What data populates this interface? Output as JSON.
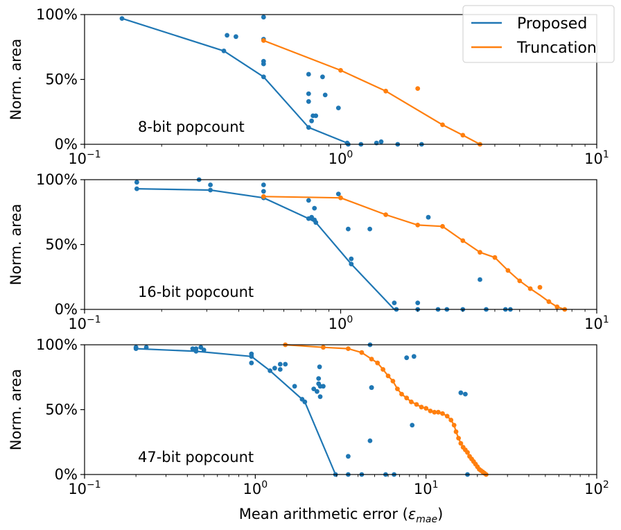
{
  "chart_data": [
    {
      "type": "scatter",
      "annotation": "8-bit popcount",
      "ylabel": "Norm. area",
      "xscale": "log",
      "xlim": [
        0.1,
        10
      ],
      "ylim": [
        0,
        100
      ],
      "x_tick_labels": [
        {
          "base": "10",
          "exp": "−1"
        },
        {
          "base": "10",
          "exp": "0"
        },
        {
          "base": "10",
          "exp": "1"
        }
      ],
      "y_tick_labels": [
        "0%",
        "50%",
        "100%"
      ],
      "series": [
        {
          "name": "Proposed",
          "color": "#1f77b4",
          "line": [
            [
              0.14,
              97
            ],
            [
              0.35,
              72
            ],
            [
              0.5,
              52
            ],
            [
              0.75,
              13
            ],
            [
              1.06,
              1
            ]
          ],
          "points": [
            [
              0.14,
              97
            ],
            [
              0.36,
              84
            ],
            [
              0.39,
              83
            ],
            [
              0.35,
              72
            ],
            [
              0.5,
              98
            ],
            [
              0.5,
              81
            ],
            [
              0.5,
              64
            ],
            [
              0.5,
              62
            ],
            [
              0.5,
              52
            ],
            [
              0.75,
              54
            ],
            [
              0.85,
              52
            ],
            [
              0.75,
              39
            ],
            [
              0.87,
              38
            ],
            [
              0.75,
              33
            ],
            [
              0.78,
              22
            ],
            [
              0.8,
              22
            ],
            [
              0.77,
              18
            ],
            [
              0.98,
              28
            ],
            [
              0.75,
              13
            ],
            [
              1.06,
              1
            ],
            [
              1.07,
              0
            ],
            [
              1.2,
              0
            ],
            [
              1.38,
              1
            ],
            [
              1.44,
              2
            ],
            [
              1.67,
              0
            ],
            [
              2.07,
              0
            ]
          ]
        },
        {
          "name": "Truncation",
          "color": "#ff7f0e",
          "line": [
            [
              0.5,
              80
            ],
            [
              1.0,
              57
            ],
            [
              1.5,
              41
            ],
            [
              2.5,
              15
            ],
            [
              3.0,
              7
            ],
            [
              3.5,
              0
            ]
          ],
          "points": [
            [
              0.5,
              80
            ],
            [
              1.0,
              57
            ],
            [
              1.5,
              41
            ],
            [
              2.0,
              43
            ],
            [
              2.5,
              15
            ],
            [
              3.0,
              7
            ],
            [
              3.5,
              0
            ]
          ]
        }
      ]
    },
    {
      "type": "scatter",
      "annotation": "16-bit popcount",
      "ylabel": "Norm. area",
      "xscale": "log",
      "xlim": [
        0.1,
        10
      ],
      "ylim": [
        0,
        100
      ],
      "x_tick_labels": [
        {
          "base": "10",
          "exp": "−1"
        },
        {
          "base": "10",
          "exp": "0"
        },
        {
          "base": "10",
          "exp": "1"
        }
      ],
      "y_tick_labels": [
        "0%",
        "50%",
        "100%"
      ],
      "series": [
        {
          "name": "Proposed",
          "color": "#1f77b4",
          "line": [
            [
              0.16,
              93
            ],
            [
              0.31,
              92
            ],
            [
              0.5,
              86
            ],
            [
              0.75,
              70
            ],
            [
              0.8,
              67
            ],
            [
              1.1,
              35
            ],
            [
              1.62,
              0
            ]
          ],
          "points": [
            [
              0.16,
              98
            ],
            [
              0.16,
              93
            ],
            [
              0.28,
              100
            ],
            [
              0.31,
              96
            ],
            [
              0.31,
              92
            ],
            [
              0.5,
              96
            ],
            [
              0.5,
              91
            ],
            [
              0.5,
              86
            ],
            [
              0.75,
              84
            ],
            [
              0.79,
              78
            ],
            [
              0.75,
              70
            ],
            [
              0.77,
              71
            ],
            [
              0.79,
              69
            ],
            [
              0.8,
              67
            ],
            [
              0.98,
              89
            ],
            [
              1.07,
              62
            ],
            [
              1.3,
              62
            ],
            [
              1.1,
              39
            ],
            [
              1.1,
              35
            ],
            [
              1.62,
              5
            ],
            [
              1.65,
              0
            ],
            [
              2.0,
              5
            ],
            [
              2.0,
              0
            ],
            [
              2.2,
              71
            ],
            [
              2.4,
              0
            ],
            [
              2.6,
              0
            ],
            [
              3.0,
              0
            ],
            [
              3.5,
              23
            ],
            [
              3.7,
              0
            ],
            [
              4.4,
              0
            ],
            [
              4.6,
              0
            ]
          ]
        },
        {
          "name": "Truncation",
          "color": "#ff7f0e",
          "line": [
            [
              0.5,
              87
            ],
            [
              1.0,
              86
            ],
            [
              1.5,
              73
            ],
            [
              2.0,
              65
            ],
            [
              2.5,
              64
            ],
            [
              3.0,
              53
            ],
            [
              3.5,
              44
            ],
            [
              4.0,
              40
            ],
            [
              4.5,
              30
            ],
            [
              5.0,
              22
            ],
            [
              5.5,
              16
            ],
            [
              6.0,
              11
            ],
            [
              6.5,
              6
            ],
            [
              7.0,
              2
            ],
            [
              7.5,
              0
            ]
          ],
          "points": [
            [
              0.5,
              87
            ],
            [
              1.0,
              86
            ],
            [
              1.5,
              73
            ],
            [
              2.0,
              65
            ],
            [
              2.5,
              64
            ],
            [
              3.0,
              53
            ],
            [
              3.5,
              44
            ],
            [
              4.0,
              40
            ],
            [
              4.5,
              30
            ],
            [
              5.0,
              22
            ],
            [
              5.5,
              16
            ],
            [
              6.0,
              17
            ],
            [
              6.5,
              6
            ],
            [
              7.0,
              2
            ],
            [
              7.5,
              0
            ]
          ]
        }
      ]
    },
    {
      "type": "scatter",
      "annotation": "47-bit popcount",
      "ylabel": "Norm. area",
      "xlabel_main": "Mean arithmetic error (",
      "xlabel_var": "ε",
      "xlabel_sub": "mae",
      "xlabel_end": ")",
      "xscale": "log",
      "xlim": [
        0.1,
        100
      ],
      "ylim": [
        0,
        100
      ],
      "x_tick_labels": [
        {
          "base": "10",
          "exp": "−1"
        },
        {
          "base": "10",
          "exp": "0"
        },
        {
          "base": "10",
          "exp": "1"
        },
        {
          "base": "10",
          "exp": "2"
        }
      ],
      "y_tick_labels": [
        "0%",
        "50%",
        "100%"
      ],
      "series": [
        {
          "name": "Proposed",
          "color": "#1f77b4",
          "line": [
            [
              0.2,
              97
            ],
            [
              0.45,
              95
            ],
            [
              0.95,
              91
            ],
            [
              1.22,
              80
            ],
            [
              1.88,
              58
            ],
            [
              1.95,
              56
            ],
            [
              2.95,
              0
            ]
          ],
          "points": [
            [
              0.2,
              98
            ],
            [
              0.2,
              97
            ],
            [
              0.23,
              98
            ],
            [
              0.43,
              97
            ],
            [
              0.45,
              97
            ],
            [
              0.48,
              98
            ],
            [
              0.5,
              96
            ],
            [
              0.45,
              95
            ],
            [
              0.95,
              93
            ],
            [
              0.95,
              91
            ],
            [
              0.95,
              86
            ],
            [
              1.22,
              80
            ],
            [
              1.3,
              82
            ],
            [
              1.4,
              85
            ],
            [
              1.5,
              85
            ],
            [
              1.4,
              81
            ],
            [
              1.7,
              68
            ],
            [
              1.88,
              58
            ],
            [
              1.95,
              56
            ],
            [
              2.2,
              66
            ],
            [
              2.3,
              64
            ],
            [
              2.35,
              70
            ],
            [
              2.4,
              68
            ],
            [
              2.5,
              68
            ],
            [
              2.38,
              83
            ],
            [
              2.35,
              74
            ],
            [
              2.4,
              60
            ],
            [
              2.95,
              0
            ],
            [
              3.5,
              14
            ],
            [
              3.5,
              0
            ],
            [
              4.2,
              0
            ],
            [
              4.7,
              100
            ],
            [
              4.8,
              67
            ],
            [
              4.8,
              67
            ],
            [
              4.7,
              26
            ],
            [
              5.8,
              0
            ],
            [
              6.5,
              0
            ],
            [
              7.7,
              90
            ],
            [
              8.5,
              91
            ],
            [
              8.3,
              38
            ],
            [
              16.0,
              63
            ],
            [
              17.0,
              62
            ],
            [
              17.5,
              0
            ]
          ]
        },
        {
          "name": "Truncation",
          "color": "#ff7f0e",
          "line": [
            [
              1.5,
              100
            ],
            [
              2.5,
              98
            ],
            [
              3.5,
              97
            ],
            [
              4.2,
              94
            ],
            [
              4.8,
              89
            ],
            [
              5.2,
              86
            ],
            [
              5.6,
              81
            ],
            [
              6.0,
              76
            ],
            [
              6.4,
              72
            ],
            [
              6.8,
              66
            ],
            [
              7.2,
              62
            ],
            [
              7.7,
              59
            ],
            [
              8.2,
              56
            ],
            [
              8.8,
              54
            ],
            [
              9.4,
              52
            ],
            [
              10.0,
              51
            ],
            [
              10.6,
              49
            ],
            [
              11.2,
              48
            ],
            [
              11.8,
              48
            ],
            [
              12.5,
              47
            ],
            [
              13.3,
              45
            ],
            [
              14.0,
              42
            ],
            [
              14.6,
              38
            ],
            [
              15.0,
              33
            ],
            [
              15.5,
              28
            ],
            [
              16.0,
              24
            ],
            [
              16.5,
              21
            ],
            [
              17.0,
              19
            ],
            [
              17.5,
              17
            ],
            [
              18.0,
              14
            ],
            [
              18.5,
              12
            ],
            [
              19.0,
              10
            ],
            [
              19.5,
              8
            ],
            [
              20.0,
              6
            ],
            [
              20.5,
              4
            ],
            [
              21.0,
              3
            ],
            [
              21.5,
              2
            ],
            [
              22.0,
              1
            ],
            [
              22.5,
              0
            ]
          ],
          "points": [
            [
              1.5,
              100
            ],
            [
              2.5,
              98
            ],
            [
              3.5,
              97
            ],
            [
              4.2,
              94
            ],
            [
              4.8,
              89
            ],
            [
              5.2,
              86
            ],
            [
              5.6,
              81
            ],
            [
              6.0,
              76
            ],
            [
              6.4,
              72
            ],
            [
              6.8,
              66
            ],
            [
              7.2,
              62
            ],
            [
              7.7,
              59
            ],
            [
              8.2,
              56
            ],
            [
              8.8,
              54
            ],
            [
              9.4,
              52
            ],
            [
              10.0,
              51
            ],
            [
              10.6,
              49
            ],
            [
              11.2,
              48
            ],
            [
              11.8,
              48
            ],
            [
              12.5,
              47
            ],
            [
              13.3,
              45
            ],
            [
              14.0,
              42
            ],
            [
              14.6,
              38
            ],
            [
              15.0,
              33
            ],
            [
              15.5,
              28
            ],
            [
              16.0,
              24
            ],
            [
              16.5,
              21
            ],
            [
              17.0,
              19
            ],
            [
              17.5,
              17
            ],
            [
              18.0,
              14
            ],
            [
              18.5,
              12
            ],
            [
              19.0,
              10
            ],
            [
              19.5,
              8
            ],
            [
              20.0,
              6
            ],
            [
              20.5,
              4
            ],
            [
              21.0,
              3
            ],
            [
              21.5,
              2
            ],
            [
              22.0,
              1
            ],
            [
              22.5,
              0
            ]
          ]
        }
      ]
    }
  ],
  "legend": {
    "placement": "top-right",
    "entries": [
      {
        "label": "Proposed",
        "color": "#1f77b4"
      },
      {
        "label": "Truncation",
        "color": "#ff7f0e"
      }
    ]
  }
}
